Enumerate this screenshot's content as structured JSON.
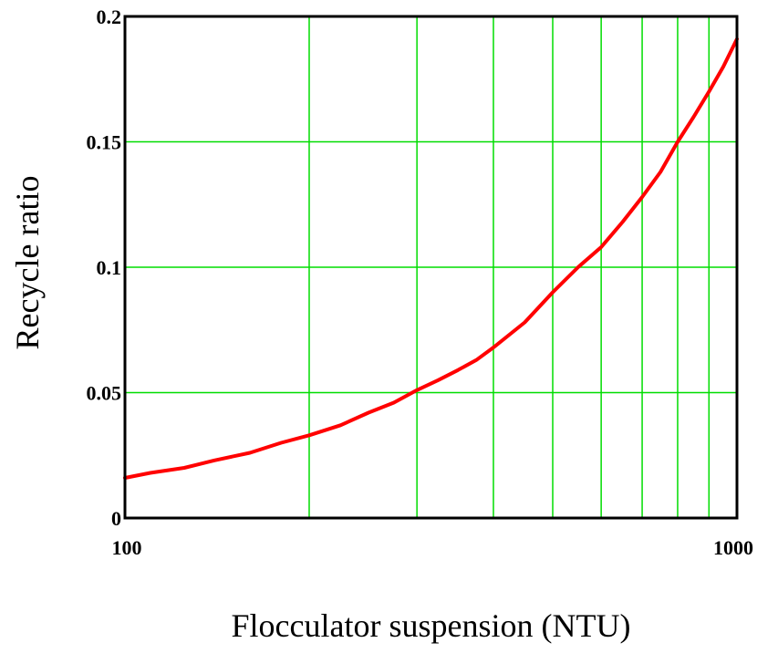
{
  "chart_data": {
    "type": "line",
    "title": "",
    "xlabel": "Flocculator suspension (NTU)",
    "ylabel": "Recycle ratio",
    "x_scale": "log",
    "xlim": [
      100,
      1000
    ],
    "ylim": [
      0,
      0.2
    ],
    "x_tick_labels": [
      "100",
      "1000"
    ],
    "y_tick_labels": [
      "0",
      "0.05",
      "0.1",
      "0.15",
      "0.2"
    ],
    "y_ticks": [
      0,
      0.05,
      0.1,
      0.15,
      0.2
    ],
    "x_gridlines": [
      200,
      300,
      400,
      500,
      600,
      700,
      800,
      900
    ],
    "y_gridlines": [
      0.05,
      0.1,
      0.15
    ],
    "grid": true,
    "grid_color": "#00dd00",
    "series": [
      {
        "color": "#ff0000",
        "x": [
          100,
          110,
          125,
          140,
          160,
          180,
          200,
          225,
          250,
          275,
          300,
          325,
          350,
          375,
          400,
          450,
          500,
          550,
          600,
          650,
          700,
          750,
          800,
          850,
          900,
          950,
          1000
        ],
        "y": [
          0.016,
          0.018,
          0.02,
          0.023,
          0.026,
          0.03,
          0.033,
          0.037,
          0.042,
          0.046,
          0.051,
          0.055,
          0.059,
          0.063,
          0.068,
          0.078,
          0.09,
          0.1,
          0.108,
          0.118,
          0.128,
          0.138,
          0.15,
          0.16,
          0.17,
          0.18,
          0.191
        ]
      }
    ]
  }
}
